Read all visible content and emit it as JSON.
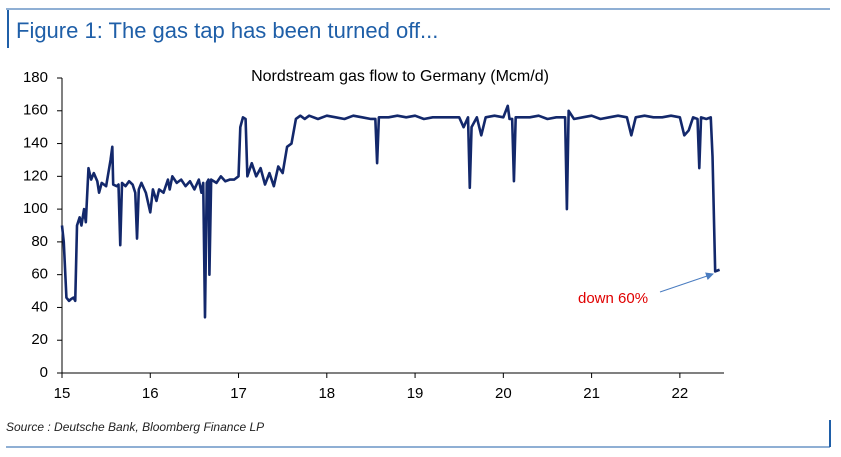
{
  "header": {
    "title": "Figure 1: The gas tap has been turned off..."
  },
  "chart_data": {
    "type": "line",
    "title": "Nordstream gas flow to Germany (Mcm/d)",
    "x": [
      15.0,
      15.02,
      15.05,
      15.08,
      15.1,
      15.13,
      15.15,
      15.17,
      15.2,
      15.22,
      15.25,
      15.27,
      15.3,
      15.33,
      15.36,
      15.4,
      15.42,
      15.45,
      15.5,
      15.55,
      15.57,
      15.58,
      15.62,
      15.64,
      15.66,
      15.68,
      15.72,
      15.76,
      15.8,
      15.83,
      15.85,
      15.87,
      15.9,
      15.95,
      16.0,
      16.03,
      16.07,
      16.1,
      16.15,
      16.2,
      16.22,
      16.25,
      16.3,
      16.35,
      16.4,
      16.45,
      16.5,
      16.55,
      16.58,
      16.6,
      16.62,
      16.64,
      16.66,
      16.67,
      16.69,
      16.75,
      16.8,
      16.85,
      16.9,
      16.95,
      17.0,
      17.02,
      17.05,
      17.08,
      17.1,
      17.15,
      17.2,
      17.25,
      17.3,
      17.35,
      17.4,
      17.45,
      17.5,
      17.55,
      17.6,
      17.65,
      17.7,
      17.75,
      17.8,
      17.9,
      18.0,
      18.1,
      18.2,
      18.3,
      18.4,
      18.5,
      18.55,
      18.57,
      18.59,
      18.7,
      18.8,
      18.9,
      19.0,
      19.1,
      19.2,
      19.3,
      19.5,
      19.55,
      19.6,
      19.62,
      19.64,
      19.7,
      19.75,
      19.8,
      19.9,
      20.0,
      20.05,
      20.07,
      20.1,
      20.12,
      20.14,
      20.3,
      20.4,
      20.5,
      20.6,
      20.7,
      20.72,
      20.74,
      20.8,
      20.9,
      21.0,
      21.1,
      21.2,
      21.3,
      21.4,
      21.45,
      21.5,
      21.6,
      21.7,
      21.8,
      21.9,
      22.0,
      22.05,
      22.1,
      22.15,
      22.2,
      22.22,
      22.24,
      22.3,
      22.35,
      22.37,
      22.4,
      22.45
    ],
    "series": [
      {
        "name": "Nordstream gas flow",
        "color": "#13286b",
        "values": [
          90,
          80,
          46,
          44,
          45,
          46,
          44,
          90,
          95,
          90,
          100,
          92,
          125,
          118,
          122,
          117,
          110,
          116,
          114,
          130,
          138,
          115,
          114,
          115,
          78,
          116,
          114,
          117,
          115,
          110,
          82,
          112,
          116,
          110,
          98,
          112,
          105,
          112,
          110,
          118,
          112,
          120,
          116,
          118,
          114,
          117,
          112,
          118,
          110,
          116,
          34,
          116,
          118,
          60,
          118,
          116,
          120,
          117,
          118,
          118,
          120,
          150,
          156,
          155,
          120,
          128,
          120,
          125,
          115,
          122,
          114,
          126,
          122,
          138,
          140,
          155,
          157,
          155,
          157,
          155,
          157,
          156,
          155,
          157,
          156,
          155,
          155,
          128,
          156,
          156,
          157,
          156,
          157,
          155,
          156,
          156,
          156,
          150,
          156,
          113,
          150,
          156,
          145,
          156,
          157,
          156,
          163,
          155,
          155,
          117,
          156,
          156,
          157,
          155,
          156,
          156,
          100,
          160,
          155,
          156,
          157,
          155,
          156,
          157,
          156,
          145,
          156,
          157,
          156,
          156,
          157,
          156,
          145,
          148,
          156,
          155,
          125,
          156,
          155,
          156,
          132,
          62,
          63
        ]
      }
    ],
    "xlim": [
      15,
      22.5
    ],
    "xticks": [
      15,
      16,
      17,
      18,
      19,
      20,
      21,
      22
    ],
    "ylim": [
      0,
      180
    ],
    "yticks": [
      0,
      20,
      40,
      60,
      80,
      100,
      120,
      140,
      160,
      180
    ],
    "grid": false,
    "annotation": "down 60%",
    "source": "Source : Deutsche Bank, Bloomberg Finance LP"
  }
}
